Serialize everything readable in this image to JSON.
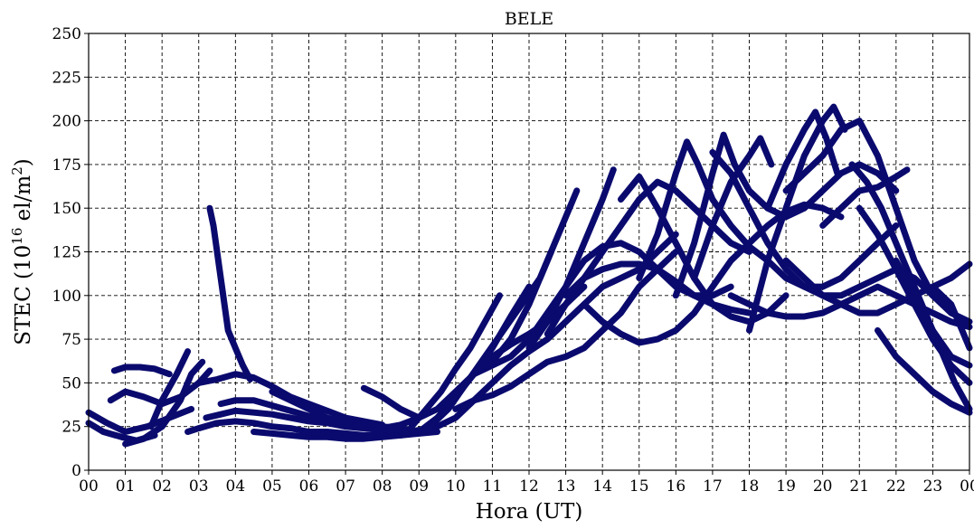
{
  "chart_data": {
    "type": "scatter",
    "title": "BELE",
    "xlabel": "Hora (UT)",
    "ylabel_main": "STEC (10",
    "ylabel_exp1": "16",
    "ylabel_mid": " el/m",
    "ylabel_exp2": "2",
    "ylabel_close": ")",
    "xlim": [
      0,
      24
    ],
    "ylim": [
      0,
      250
    ],
    "grid": true,
    "x_ticks": [
      0,
      1,
      2,
      3,
      4,
      5,
      6,
      7,
      8,
      9,
      10,
      11,
      12,
      13,
      14,
      15,
      16,
      17,
      18,
      19,
      20,
      21,
      22,
      23,
      24
    ],
    "x_tick_labels": [
      "00",
      "01",
      "02",
      "03",
      "04",
      "05",
      "06",
      "07",
      "08",
      "09",
      "10",
      "11",
      "12",
      "13",
      "14",
      "15",
      "16",
      "17",
      "18",
      "19",
      "20",
      "21",
      "22",
      "23",
      "00"
    ],
    "y_ticks": [
      0,
      25,
      50,
      75,
      100,
      125,
      150,
      175,
      200,
      225,
      250
    ],
    "y_tick_labels": [
      "0",
      "25",
      "50",
      "75",
      "100",
      "125",
      "150",
      "175",
      "200",
      "225",
      "250"
    ],
    "marker_color": "#0a0a6e",
    "series": [
      {
        "x": [
          0,
          0.4,
          0.9,
          1.3,
          1.8
        ],
        "y": [
          27,
          22,
          19,
          17,
          20
        ]
      },
      {
        "x": [
          0,
          0.5,
          1.0,
          1.6,
          2.2,
          2.8
        ],
        "y": [
          33,
          27,
          22,
          25,
          30,
          35
        ]
      },
      {
        "x": [
          0.7,
          1.0,
          1.4,
          1.8,
          2.2
        ],
        "y": [
          57,
          59,
          59,
          58,
          55
        ]
      },
      {
        "x": [
          0.6,
          1.0,
          1.5,
          2.0,
          2.5,
          3.0,
          3.3
        ],
        "y": [
          40,
          45,
          42,
          38,
          42,
          50,
          57
        ]
      },
      {
        "x": [
          1.0,
          1.5,
          2.0,
          2.5,
          2.8,
          3.1
        ],
        "y": [
          15,
          18,
          25,
          40,
          55,
          62
        ]
      },
      {
        "x": [
          1.7,
          2.0,
          2.4,
          2.7
        ],
        "y": [
          25,
          40,
          55,
          68
        ]
      },
      {
        "x": [
          2.7,
          3.0,
          3.5,
          4.0,
          4.5,
          5.0,
          5.5,
          6.0,
          6.5,
          7.0,
          7.5,
          8.0,
          8.5,
          9.0
        ],
        "y": [
          22,
          24,
          27,
          28,
          27,
          25,
          24,
          22,
          22,
          21,
          20,
          20,
          21,
          23
        ]
      },
      {
        "x": [
          3.2,
          3.6,
          4.0,
          4.5,
          5.0,
          5.5,
          6.0,
          6.5,
          7.0,
          7.5,
          8.0,
          8.5,
          9.0,
          9.4
        ],
        "y": [
          30,
          32,
          34,
          33,
          32,
          30,
          28,
          27,
          25,
          24,
          23,
          22,
          22,
          24
        ]
      },
      {
        "x": [
          3.3,
          3.4,
          3.6,
          3.8,
          4.0,
          4.2,
          4.4
        ],
        "y": [
          150,
          140,
          110,
          80,
          70,
          60,
          52
        ]
      },
      {
        "x": [
          3.0,
          3.5,
          4.0,
          4.5,
          5.0,
          5.5,
          6.0,
          6.5,
          7.0,
          7.5,
          8.0
        ],
        "y": [
          50,
          52,
          55,
          53,
          48,
          42,
          38,
          34,
          30,
          28,
          26
        ]
      },
      {
        "x": [
          3.6,
          4.0,
          4.5,
          5.0,
          5.5,
          6.0,
          6.5,
          7.0,
          7.5,
          8.0,
          8.5,
          9.0
        ],
        "y": [
          38,
          40,
          40,
          37,
          34,
          31,
          29,
          27,
          26,
          25,
          24,
          22
        ]
      },
      {
        "x": [
          4.5,
          5.0,
          5.5,
          6.0,
          6.5,
          7.0,
          7.5,
          8.0,
          8.5,
          9.0,
          9.5
        ],
        "y": [
          22,
          21,
          20,
          19,
          19,
          18,
          18,
          19,
          20,
          21,
          22
        ]
      },
      {
        "x": [
          5.0,
          5.5,
          6.0,
          6.5,
          7.0,
          7.5,
          8.0,
          8.5,
          9.0
        ],
        "y": [
          45,
          40,
          35,
          30,
          27,
          25,
          24,
          26,
          30
        ]
      },
      {
        "x": [
          7.5,
          8.0,
          8.5,
          9.0,
          9.5,
          10.0,
          10.5,
          11.0,
          11.5,
          12.0,
          12.5,
          13.0,
          13.5
        ],
        "y": [
          47,
          42,
          35,
          30,
          35,
          45,
          55,
          65,
          72,
          78,
          85,
          95,
          105
        ]
      },
      {
        "x": [
          8.5,
          9.0,
          9.5,
          10.0,
          10.5,
          11.0,
          11.5,
          12.0,
          12.5,
          13.0,
          13.5,
          14.0,
          14.5,
          15.0,
          15.5,
          16.0
        ],
        "y": [
          20,
          22,
          25,
          30,
          40,
          50,
          60,
          68,
          75,
          85,
          95,
          105,
          110,
          115,
          125,
          135
        ]
      },
      {
        "x": [
          8.8,
          9.2,
          9.6,
          10.0,
          10.4,
          10.8,
          11.2
        ],
        "y": [
          25,
          35,
          45,
          58,
          70,
          85,
          100
        ]
      },
      {
        "x": [
          9.0,
          9.5,
          10.0,
          10.5,
          11.0,
          11.5,
          12.0
        ],
        "y": [
          22,
          30,
          42,
          55,
          70,
          88,
          105
        ]
      },
      {
        "x": [
          9.3,
          9.8,
          10.3,
          10.8,
          11.3,
          11.8,
          12.3,
          12.6
        ],
        "y": [
          25,
          35,
          50,
          65,
          80,
          95,
          110,
          125
        ]
      },
      {
        "x": [
          10.0,
          10.5,
          11.0,
          11.5,
          12.0,
          12.5,
          13.0,
          13.5,
          14.0,
          14.5,
          15.0,
          15.5,
          16.0
        ],
        "y": [
          35,
          40,
          43,
          48,
          55,
          62,
          65,
          70,
          80,
          90,
          105,
          115,
          125
        ]
      },
      {
        "x": [
          10.5,
          11.0,
          11.5,
          12.0,
          12.5,
          13.0,
          13.5,
          14.0,
          14.5,
          15.0,
          15.5,
          16.0,
          16.5,
          17.0,
          17.5
        ],
        "y": [
          55,
          60,
          65,
          75,
          90,
          105,
          120,
          128,
          130,
          125,
          115,
          105,
          100,
          100,
          105
        ]
      },
      {
        "x": [
          11.0,
          11.5,
          12.0,
          12.5,
          13.0,
          13.3
        ],
        "y": [
          62,
          75,
          95,
          120,
          145,
          160
        ]
      },
      {
        "x": [
          12.0,
          12.5,
          13.0,
          13.5,
          14.0,
          14.3
        ],
        "y": [
          70,
          85,
          105,
          130,
          155,
          172
        ]
      },
      {
        "x": [
          12.5,
          13.0,
          13.5,
          14.0,
          14.5,
          15.0,
          15.5,
          16.0,
          16.5,
          17.0,
          17.5,
          18.0
        ],
        "y": [
          78,
          95,
          110,
          125,
          140,
          155,
          165,
          160,
          150,
          140,
          130,
          125
        ]
      },
      {
        "x": [
          13.0,
          13.5,
          14.0,
          14.5,
          15.0,
          15.5,
          16.0,
          16.5,
          17.0,
          17.5,
          18.0
        ],
        "y": [
          100,
          110,
          115,
          118,
          118,
          115,
          108,
          100,
          95,
          92,
          90
        ]
      },
      {
        "x": [
          13.5,
          14.0,
          14.5,
          15.0,
          15.5,
          16.0,
          16.5,
          17.0,
          17.5,
          18.0,
          18.5,
          19.0,
          19.5,
          20.0,
          20.5
        ],
        "y": [
          95,
          85,
          78,
          73,
          75,
          80,
          90,
          105,
          120,
          130,
          140,
          148,
          152,
          150,
          145
        ]
      },
      {
        "x": [
          14.5,
          15.0,
          15.5,
          16.0,
          16.5,
          17.0,
          17.5,
          18.0,
          18.5,
          19.0
        ],
        "y": [
          155,
          168,
          150,
          130,
          110,
          95,
          88,
          85,
          90,
          100
        ]
      },
      {
        "x": [
          15.0,
          15.5,
          16.0,
          16.3,
          16.6,
          17.0,
          17.5,
          18.0,
          18.5,
          19.0,
          19.5,
          20.0,
          20.5,
          21.0,
          21.5,
          22.0
        ],
        "y": [
          110,
          135,
          170,
          188,
          175,
          155,
          140,
          128,
          120,
          110,
          105,
          105,
          110,
          120,
          130,
          140
        ]
      },
      {
        "x": [
          16.0,
          16.5,
          17.0,
          17.3,
          17.6,
          18.0,
          18.5,
          19.0,
          19.5,
          20.0,
          20.5,
          21.0,
          21.5,
          22.0
        ],
        "y": [
          100,
          130,
          170,
          192,
          175,
          160,
          150,
          145,
          150,
          160,
          170,
          175,
          170,
          160
        ]
      },
      {
        "x": [
          16.5,
          17.0,
          17.5,
          18.0,
          18.3,
          18.6
        ],
        "y": [
          110,
          140,
          165,
          180,
          190,
          175
        ]
      },
      {
        "x": [
          17.0,
          17.5,
          18.0,
          18.5,
          19.0,
          19.5,
          20.0,
          20.5,
          21.0,
          21.5,
          22.0,
          22.5,
          23.0,
          23.5
        ],
        "y": [
          182,
          170,
          150,
          130,
          115,
          105,
          100,
          100,
          105,
          110,
          115,
          110,
          100,
          92
        ]
      },
      {
        "x": [
          17.5,
          18.0,
          18.5,
          19.0,
          19.5,
          20.0,
          20.5,
          21.0,
          21.5,
          22.0,
          22.5,
          23.0,
          23.5,
          24.0
        ],
        "y": [
          100,
          95,
          90,
          88,
          88,
          90,
          95,
          100,
          105,
          100,
          95,
          90,
          85,
          82
        ]
      },
      {
        "x": [
          18.0,
          18.5,
          19.0,
          19.5,
          20.0,
          20.3,
          20.6
        ],
        "y": [
          80,
          120,
          150,
          180,
          200,
          208,
          195
        ]
      },
      {
        "x": [
          18.5,
          19.0,
          19.5,
          19.8,
          20.1,
          20.4
        ],
        "y": [
          150,
          175,
          195,
          205,
          190,
          170
        ]
      },
      {
        "x": [
          19.0,
          19.5,
          20.0,
          20.5,
          21.0,
          21.5,
          22.0,
          22.5,
          23.0,
          23.5,
          24.0
        ],
        "y": [
          160,
          170,
          180,
          195,
          200,
          180,
          150,
          120,
          100,
          90,
          85
        ]
      },
      {
        "x": [
          19.0,
          19.5,
          20.0,
          20.5,
          21.0,
          21.5,
          22.0,
          22.5,
          23.0,
          23.5,
          24.0
        ],
        "y": [
          120,
          110,
          100,
          95,
          90,
          90,
          95,
          100,
          105,
          110,
          118
        ]
      },
      {
        "x": [
          20.0,
          20.5,
          21.0,
          21.5,
          22.0,
          22.3
        ],
        "y": [
          140,
          150,
          160,
          162,
          168,
          172
        ]
      },
      {
        "x": [
          20.8,
          21.2,
          21.6,
          22.0,
          22.4,
          22.8,
          23.2,
          23.6,
          24.0
        ],
        "y": [
          175,
          165,
          150,
          130,
          110,
          90,
          70,
          50,
          35
        ]
      },
      {
        "x": [
          21.0,
          21.5,
          22.0,
          22.5,
          23.0,
          23.5,
          24.0
        ],
        "y": [
          150,
          135,
          115,
          95,
          75,
          60,
          50
        ]
      },
      {
        "x": [
          21.5,
          22.0,
          22.5,
          23.0,
          23.5,
          24.0
        ],
        "y": [
          80,
          65,
          55,
          45,
          38,
          33
        ]
      },
      {
        "x": [
          22.0,
          22.5,
          23.0,
          23.5,
          24.0
        ],
        "y": [
          120,
          100,
          80,
          65,
          60
        ]
      },
      {
        "x": [
          23.0,
          23.5,
          23.8,
          24.0
        ],
        "y": [
          105,
          95,
          80,
          70
        ]
      }
    ]
  }
}
